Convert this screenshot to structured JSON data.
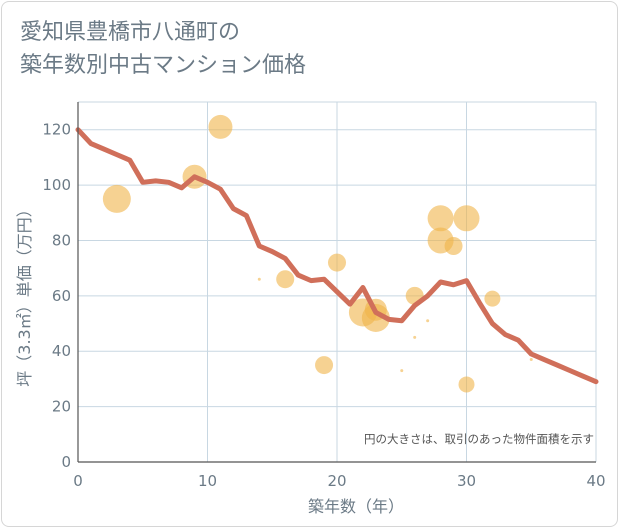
{
  "title": {
    "line1": "愛知県豊橋市八通町の",
    "line2": "築年数別中古マンション価格"
  },
  "colors": {
    "line": "#d06f5a",
    "bubble": "#f0b449",
    "text": "#6b7a86",
    "grid": "#c8d7e2",
    "axis": "#555555"
  },
  "chart_data": {
    "type": "scatter",
    "xlabel": "築年数（年）",
    "ylabel": "坪（3.3㎡）単価（万円）",
    "xlim": [
      0,
      40
    ],
    "ylim": [
      0,
      130
    ],
    "xticks": [
      0,
      10,
      20,
      30,
      40
    ],
    "yticks": [
      0,
      20,
      40,
      60,
      80,
      100,
      120
    ],
    "grid": true,
    "note": "円の大きさは、取引のあった物件面積を示す",
    "line": {
      "x": [
        0,
        1,
        2,
        3,
        4,
        5,
        6,
        7,
        8,
        9,
        10,
        11,
        12,
        13,
        14,
        15,
        16,
        17,
        18,
        19,
        20,
        21,
        22,
        23,
        24,
        25,
        26,
        27,
        28,
        29,
        30,
        31,
        32,
        33,
        34,
        35,
        36,
        37,
        38,
        39,
        40
      ],
      "y": [
        120,
        115,
        113,
        111,
        109,
        101,
        101.5,
        101,
        99,
        103,
        101,
        98.5,
        91.5,
        89,
        78,
        76,
        73.5,
        67.5,
        65.5,
        66,
        61.5,
        57,
        63,
        54,
        51.5,
        51,
        56.5,
        60,
        65,
        64,
        65.5,
        57.5,
        50,
        46,
        44,
        39,
        37,
        35,
        33,
        31,
        29
      ]
    },
    "bubbles": [
      {
        "x": 3,
        "y": 95,
        "size": 14
      },
      {
        "x": 9,
        "y": 103,
        "size": 12
      },
      {
        "x": 11,
        "y": 121,
        "size": 12
      },
      {
        "x": 14,
        "y": 66,
        "size": 1.5
      },
      {
        "x": 16,
        "y": 66,
        "size": 9
      },
      {
        "x": 19,
        "y": 35,
        "size": 9
      },
      {
        "x": 20,
        "y": 72,
        "size": 9
      },
      {
        "x": 22,
        "y": 54,
        "size": 14
      },
      {
        "x": 23,
        "y": 55,
        "size": 11
      },
      {
        "x": 23,
        "y": 52,
        "size": 14
      },
      {
        "x": 25,
        "y": 33,
        "size": 1.5
      },
      {
        "x": 26,
        "y": 60,
        "size": 9
      },
      {
        "x": 26,
        "y": 45,
        "size": 1.5
      },
      {
        "x": 27,
        "y": 51,
        "size": 1.5
      },
      {
        "x": 28,
        "y": 88,
        "size": 13
      },
      {
        "x": 28,
        "y": 80,
        "size": 13
      },
      {
        "x": 29,
        "y": 78,
        "size": 9
      },
      {
        "x": 30,
        "y": 88,
        "size": 13
      },
      {
        "x": 30,
        "y": 28,
        "size": 8
      },
      {
        "x": 32,
        "y": 59,
        "size": 8
      },
      {
        "x": 35,
        "y": 37,
        "size": 1.5
      }
    ]
  }
}
